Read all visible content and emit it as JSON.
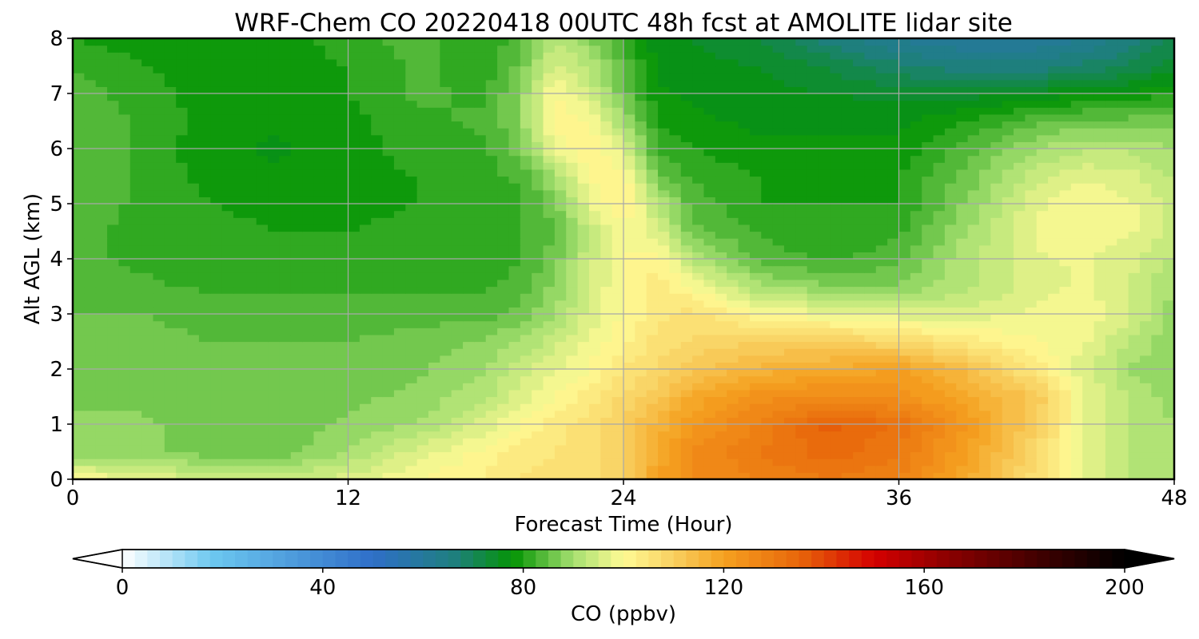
{
  "chart_data": {
    "type": "heatmap",
    "title": "WRF-Chem CO  20220418 00UTC 48h fcst at AMOLITE lidar site",
    "xlabel": "Forecast Time (Hour)",
    "ylabel": "Alt AGL (km)",
    "xlim": [
      0,
      48
    ],
    "ylim": [
      0,
      8
    ],
    "xticks": [
      0,
      12,
      24,
      36,
      48
    ],
    "yticks": [
      0,
      1,
      2,
      3,
      4,
      5,
      6,
      7,
      8
    ],
    "grid": true,
    "x": [
      0,
      3,
      6,
      9,
      12,
      15,
      18,
      19.5,
      21,
      22.5,
      24,
      25.5,
      27,
      30,
      33,
      36,
      39,
      42,
      44,
      46,
      48
    ],
    "y": [
      0,
      0.5,
      1,
      1.5,
      2,
      2.5,
      3,
      3.5,
      4,
      4.5,
      5,
      5.5,
      6,
      6.5,
      7,
      7.5,
      8
    ],
    "z": [
      [
        100,
        98,
        94,
        94,
        96,
        100,
        103,
        105,
        106,
        107,
        110,
        120,
        125,
        128,
        130,
        128,
        118,
        106,
        98,
        92,
        90
      ],
      [
        88,
        88,
        86,
        86,
        90,
        96,
        101,
        104,
        105,
        106,
        110,
        118,
        125,
        130,
        134,
        130,
        120,
        108,
        98,
        92,
        90
      ],
      [
        88,
        88,
        86,
        86,
        88,
        90,
        96,
        100,
        104,
        106,
        110,
        116,
        122,
        128,
        136,
        132,
        122,
        110,
        98,
        92,
        90
      ],
      [
        87,
        87,
        86,
        86,
        87,
        88,
        92,
        96,
        100,
        104,
        108,
        112,
        118,
        124,
        126,
        124,
        118,
        112,
        98,
        92,
        89
      ],
      [
        85,
        86,
        86,
        86,
        86,
        87,
        90,
        94,
        97,
        100,
        105,
        108,
        112,
        116,
        118,
        120,
        114,
        104,
        96,
        90,
        88
      ],
      [
        85,
        86,
        85,
        85,
        85,
        86,
        88,
        90,
        94,
        98,
        102,
        106,
        108,
        110,
        110,
        108,
        104,
        100,
        98,
        92,
        88
      ],
      [
        85,
        85,
        84,
        84,
        84,
        84,
        84,
        86,
        90,
        96,
        100,
        104,
        106,
        100,
        98,
        96,
        96,
        98,
        100,
        96,
        88
      ],
      [
        84,
        83,
        82,
        82,
        82,
        82,
        82,
        84,
        88,
        95,
        100,
        104,
        100,
        90,
        88,
        88,
        92,
        96,
        98,
        95,
        90
      ],
      [
        83,
        82,
        81,
        80,
        80,
        81,
        81,
        82,
        86,
        94,
        100,
        102,
        92,
        84,
        82,
        84,
        92,
        97,
        98,
        96,
        92
      ],
      [
        83,
        82,
        81,
        80,
        80,
        81,
        81,
        82,
        85,
        93,
        99,
        96,
        86,
        82,
        80,
        82,
        90,
        98,
        99,
        98,
        94
      ],
      [
        84,
        82,
        80,
        79,
        79,
        80,
        81,
        82,
        86,
        97,
        103,
        92,
        84,
        80,
        80,
        80,
        88,
        97,
        100,
        98,
        94
      ],
      [
        85,
        82,
        79,
        78,
        79,
        80,
        82,
        83,
        90,
        100,
        102,
        86,
        82,
        80,
        79,
        80,
        86,
        94,
        97,
        96,
        92
      ],
      [
        85,
        82,
        78,
        77,
        79,
        81,
        82,
        86,
        98,
        103,
        96,
        82,
        80,
        78,
        78,
        78,
        84,
        90,
        92,
        92,
        90
      ],
      [
        85,
        82,
        79,
        78,
        79,
        82,
        83,
        88,
        102,
        100,
        90,
        80,
        78,
        77,
        77,
        77,
        80,
        84,
        86,
        86,
        86
      ],
      [
        84,
        81,
        79,
        78,
        80,
        83,
        82,
        88,
        100,
        95,
        86,
        78,
        77,
        76,
        75,
        74,
        74,
        76,
        77,
        78,
        80
      ],
      [
        82,
        80,
        79,
        79,
        80,
        83,
        81,
        86,
        96,
        92,
        84,
        77,
        76,
        75,
        72,
        68,
        66,
        66,
        68,
        70,
        74
      ],
      [
        80,
        79,
        78,
        79,
        81,
        84,
        80,
        84,
        92,
        88,
        82,
        76,
        75,
        72,
        66,
        62,
        60,
        60,
        62,
        66,
        70
      ]
    ],
    "colorbar": {
      "label": "CO  (ppbv)",
      "min": 0,
      "max": 200,
      "ticks": [
        0,
        40,
        80,
        120,
        160,
        200
      ],
      "extend": "both",
      "stops": [
        {
          "v": 0,
          "c": "#ffffff"
        },
        {
          "v": 18,
          "c": "#6cc8f0"
        },
        {
          "v": 50,
          "c": "#2f6fc8"
        },
        {
          "v": 66,
          "c": "#1f7f80"
        },
        {
          "v": 78,
          "c": "#049404"
        },
        {
          "v": 90,
          "c": "#a6e070"
        },
        {
          "v": 100,
          "c": "#fffa94"
        },
        {
          "v": 110,
          "c": "#f8d060"
        },
        {
          "v": 120,
          "c": "#f5a120"
        },
        {
          "v": 135,
          "c": "#e8660a"
        },
        {
          "v": 150,
          "c": "#d40000"
        },
        {
          "v": 165,
          "c": "#8a0000"
        },
        {
          "v": 185,
          "c": "#380000"
        },
        {
          "v": 200,
          "c": "#000000"
        }
      ]
    }
  }
}
